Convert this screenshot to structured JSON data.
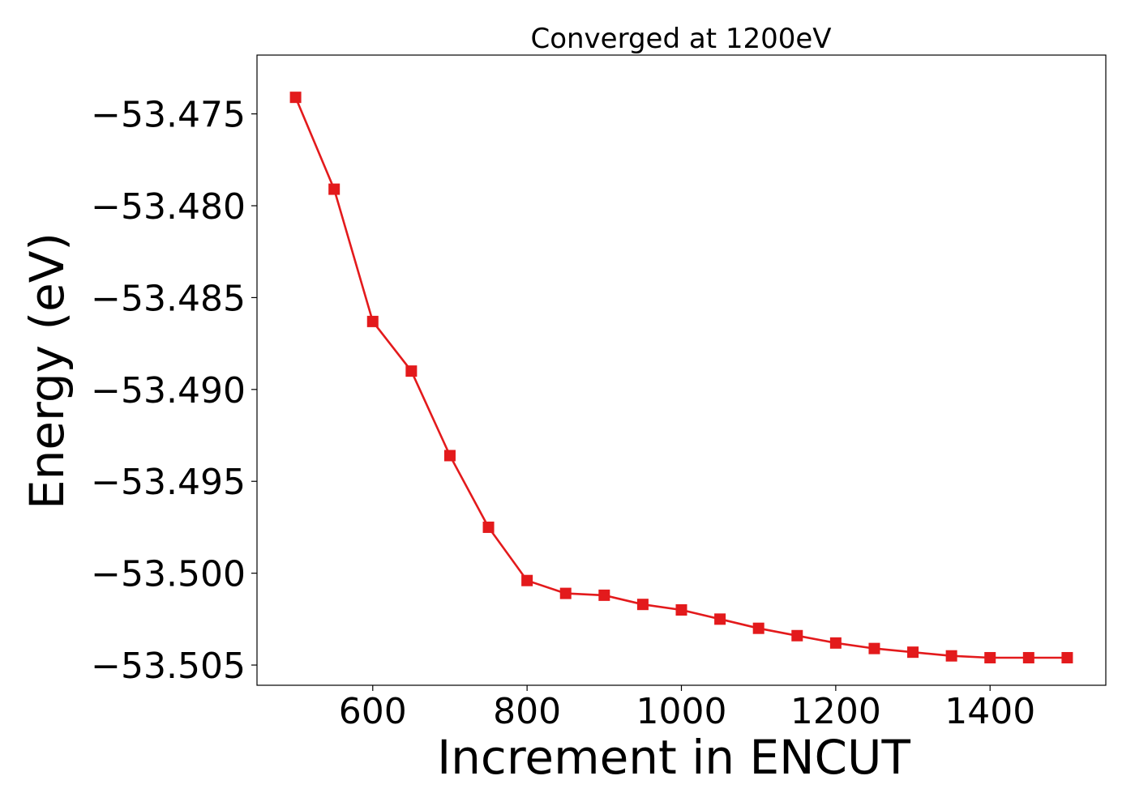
{
  "chart_data": {
    "type": "line",
    "title": "Converged at 1200eV",
    "xlabel": "Increment in ENCUT",
    "ylabel": "Energy (eV)",
    "xlim": [
      450,
      1550
    ],
    "ylim": [
      -53.5061,
      -53.4718
    ],
    "grid": false,
    "legend": "none",
    "x_ticks": [
      600,
      800,
      1000,
      1200,
      1400
    ],
    "x_tick_labels": [
      "600",
      "800",
      "1000",
      "1200",
      "1400"
    ],
    "y_ticks": [
      -53.475,
      -53.48,
      -53.485,
      -53.49,
      -53.495,
      -53.5,
      -53.505
    ],
    "y_tick_labels": [
      "−53.475",
      "−53.480",
      "−53.485",
      "−53.490",
      "−53.495",
      "−53.500",
      "−53.505"
    ],
    "series": [
      {
        "color": "#e31a1c",
        "marker": "square",
        "x": [
          500,
          550,
          600,
          650,
          700,
          750,
          800,
          850,
          900,
          950,
          1000,
          1050,
          1100,
          1150,
          1200,
          1250,
          1300,
          1350,
          1400,
          1450,
          1500
        ],
        "values": [
          -53.4741,
          -53.4791,
          -53.4863,
          -53.489,
          -53.4936,
          -53.4975,
          -53.5004,
          -53.5011,
          -53.5012,
          -53.5017,
          -53.502,
          -53.5025,
          -53.503,
          -53.5034,
          -53.5038,
          -53.5041,
          -53.5043,
          -53.5045,
          -53.5046,
          -53.5046,
          -53.5046
        ]
      }
    ]
  }
}
